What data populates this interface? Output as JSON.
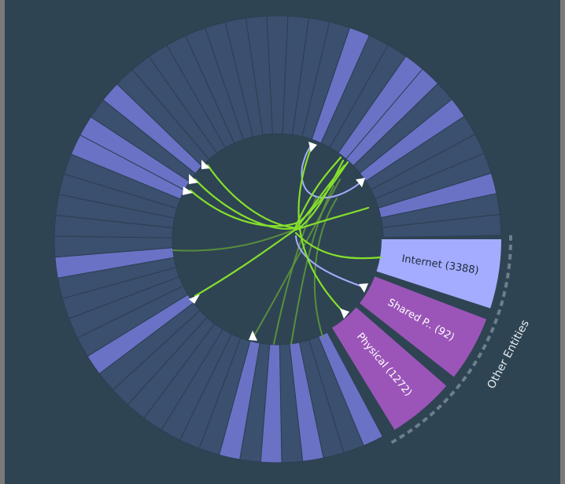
{
  "colors": {
    "background": "#2e4452",
    "segment": "#3b4f6e",
    "segment_highlight": "#6a72c6",
    "internet": "#a3acff",
    "entity": "#9b55b8",
    "chord_bright": "#86e02c",
    "chord_dim": "#5f9a3c",
    "chord_lavender": "#a3acff",
    "marker": "#ffffff",
    "group_arc": "#6b7f8c"
  },
  "ring": {
    "segment_count": 55,
    "highlighted_indices": [
      0,
      3,
      5,
      7,
      15,
      20,
      26,
      27,
      29,
      42,
      45,
      46,
      48,
      52
    ]
  },
  "entities": [
    {
      "name": "Internet",
      "count": 3388,
      "label": "Internet (3388)"
    },
    {
      "name": "Shared P..",
      "count": 92,
      "label": "Shared P.. (92)"
    },
    {
      "name": "Physical",
      "count": 1272,
      "label": "Physical (1272)"
    }
  ],
  "group": {
    "label": "Other Entities"
  }
}
